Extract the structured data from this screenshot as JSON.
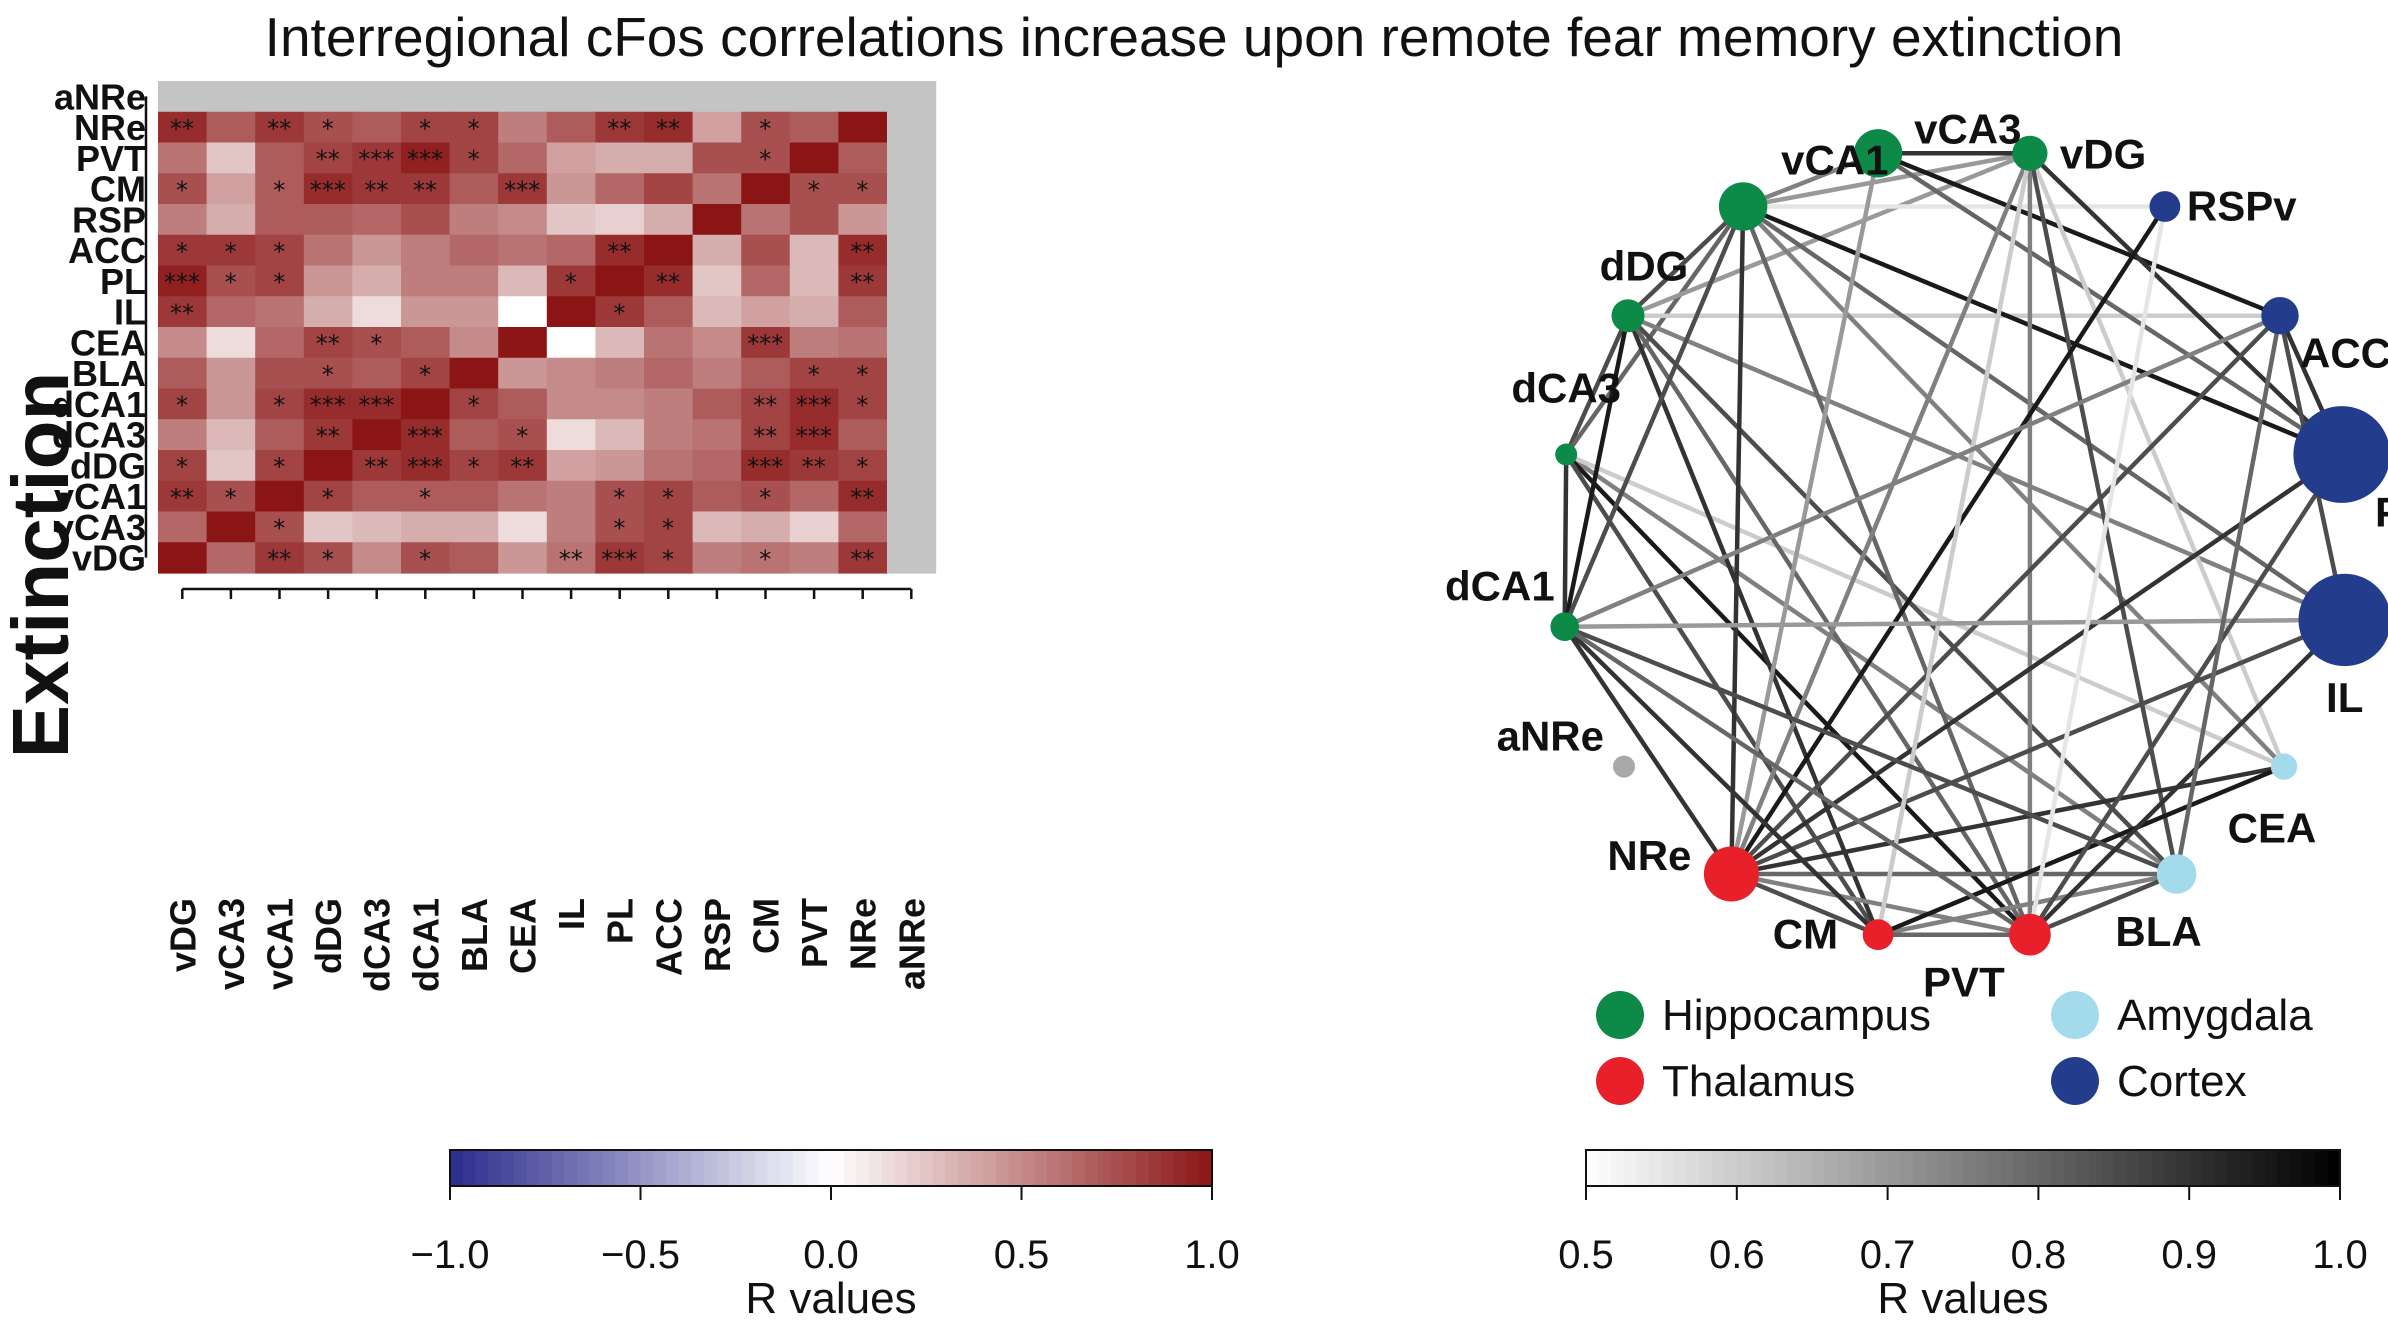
{
  "title": "Interregional cFos correlations increase upon remote fear memory extinction",
  "chart_data": [
    {
      "type": "heatmap",
      "ylabel": "Extinction",
      "rows": [
        "aNRe",
        "NRe",
        "PVT",
        "CM",
        "RSP",
        "ACC",
        "PL",
        "IL",
        "CEA",
        "BLA",
        "dCA1",
        "dCA3",
        "dDG",
        "vCA1",
        "vCA3",
        "vDG"
      ],
      "columns": [
        "vDG",
        "vCA3",
        "vCA1",
        "dDG",
        "dCA3",
        "dCA1",
        "BLA",
        "CEA",
        "IL",
        "PL",
        "ACC",
        "RSP",
        "CM",
        "PVT",
        "NRe",
        "aNRe"
      ],
      "values": [
        [
          null,
          null,
          null,
          null,
          null,
          null,
          null,
          null,
          null,
          null,
          null,
          null,
          null,
          null,
          null,
          null
        ],
        [
          0.9,
          0.7,
          0.85,
          0.75,
          0.7,
          0.8,
          0.8,
          0.55,
          0.7,
          0.85,
          0.9,
          0.4,
          0.75,
          0.7,
          1.0,
          null
        ],
        [
          0.6,
          0.25,
          0.7,
          0.8,
          0.85,
          0.95,
          0.8,
          0.65,
          0.4,
          0.35,
          0.35,
          0.75,
          0.75,
          1.0,
          0.7,
          null
        ],
        [
          0.75,
          0.4,
          0.7,
          0.9,
          0.85,
          0.85,
          0.7,
          0.85,
          0.45,
          0.65,
          0.8,
          0.6,
          1.0,
          0.75,
          0.75,
          null
        ],
        [
          0.55,
          0.35,
          0.7,
          0.7,
          0.65,
          0.75,
          0.55,
          0.5,
          0.25,
          0.2,
          0.35,
          1.0,
          0.6,
          0.75,
          0.45,
          null
        ],
        [
          0.85,
          0.85,
          0.8,
          0.6,
          0.45,
          0.55,
          0.65,
          0.6,
          0.65,
          0.9,
          1.0,
          0.35,
          0.75,
          0.3,
          0.9,
          null
        ],
        [
          0.95,
          0.75,
          0.8,
          0.45,
          0.35,
          0.55,
          0.55,
          0.3,
          0.85,
          1.0,
          0.9,
          0.25,
          0.65,
          0.3,
          0.85,
          null
        ],
        [
          0.85,
          0.65,
          0.6,
          0.35,
          0.15,
          0.45,
          0.45,
          0.0,
          1.0,
          0.85,
          0.7,
          0.3,
          0.4,
          0.35,
          0.7,
          null
        ],
        [
          0.5,
          0.15,
          0.65,
          0.8,
          0.75,
          0.7,
          0.5,
          1.0,
          0.0,
          0.3,
          0.6,
          0.5,
          0.85,
          0.55,
          0.6,
          null
        ],
        [
          0.7,
          0.45,
          0.75,
          0.75,
          0.7,
          0.8,
          1.0,
          0.45,
          0.5,
          0.55,
          0.65,
          0.55,
          0.7,
          0.8,
          0.8,
          null
        ],
        [
          0.8,
          0.45,
          0.8,
          0.9,
          0.9,
          1.0,
          0.8,
          0.7,
          0.5,
          0.5,
          0.55,
          0.7,
          0.8,
          0.9,
          0.8,
          null
        ],
        [
          0.55,
          0.3,
          0.7,
          0.85,
          1.0,
          0.9,
          0.7,
          0.75,
          0.15,
          0.3,
          0.55,
          0.6,
          0.8,
          0.9,
          0.7,
          null
        ],
        [
          0.8,
          0.25,
          0.8,
          1.0,
          0.85,
          0.9,
          0.8,
          0.85,
          0.4,
          0.45,
          0.6,
          0.65,
          0.9,
          0.85,
          0.8,
          null
        ],
        [
          0.85,
          0.75,
          1.0,
          0.8,
          0.7,
          0.7,
          0.7,
          0.6,
          0.55,
          0.75,
          0.8,
          0.7,
          0.75,
          0.65,
          0.9,
          null
        ],
        [
          0.65,
          1.0,
          0.75,
          0.25,
          0.3,
          0.35,
          0.35,
          0.15,
          0.55,
          0.75,
          0.8,
          0.3,
          0.35,
          0.2,
          0.65,
          null
        ],
        [
          1.0,
          0.65,
          0.85,
          0.75,
          0.5,
          0.75,
          0.7,
          0.45,
          0.6,
          0.85,
          0.8,
          0.55,
          0.6,
          0.55,
          0.85,
          null
        ]
      ],
      "significance": [
        [
          "",
          "",
          "",
          "",
          "",
          "",
          "",
          "",
          "",
          "",
          "",
          "",
          "",
          "",
          "",
          ""
        ],
        [
          "**",
          "",
          "**",
          "*",
          "",
          "*",
          "*",
          "",
          "",
          "**",
          "**",
          "",
          "*",
          "",
          "",
          ""
        ],
        [
          "",
          "",
          "",
          "**",
          "***",
          "***",
          "*",
          "",
          "",
          "",
          "",
          "",
          "*",
          "",
          "",
          ""
        ],
        [
          "*",
          "",
          "*",
          "***",
          "**",
          "**",
          "",
          "***",
          "",
          "",
          "",
          "",
          "",
          "*",
          "*",
          ""
        ],
        [
          "",
          "",
          "",
          "",
          "",
          "",
          "",
          "",
          "",
          "",
          "",
          "",
          "",
          "",
          "",
          ""
        ],
        [
          "*",
          "*",
          "*",
          "",
          "",
          "",
          "",
          "",
          "",
          "**",
          "",
          "",
          "",
          "",
          "**",
          ""
        ],
        [
          "***",
          "*",
          "*",
          "",
          "",
          "",
          "",
          "",
          "*",
          "",
          "**",
          "",
          "",
          "",
          "**",
          ""
        ],
        [
          "**",
          "",
          "",
          "",
          "",
          "",
          "",
          "",
          "",
          "*",
          "",
          "",
          "",
          "",
          "",
          ""
        ],
        [
          "",
          "",
          "",
          "**",
          "*",
          "",
          "",
          "",
          "",
          "",
          "",
          "",
          "***",
          "",
          "",
          ""
        ],
        [
          "",
          "",
          "",
          "*",
          "",
          "*",
          "",
          "",
          "",
          "",
          "",
          "",
          "",
          "*",
          "*",
          ""
        ],
        [
          "*",
          "",
          "*",
          "***",
          "***",
          "",
          "*",
          "",
          "",
          "",
          "",
          "",
          "**",
          "***",
          "*",
          ""
        ],
        [
          "",
          "",
          "",
          "**",
          "",
          "***",
          "",
          "*",
          "",
          "",
          "",
          "",
          "**",
          "***",
          "",
          ""
        ],
        [
          "*",
          "",
          "*",
          "",
          "**",
          "***",
          "*",
          "**",
          "",
          "",
          "",
          "",
          "***",
          "**",
          "*",
          ""
        ],
        [
          "**",
          "*",
          "",
          "*",
          "",
          "*",
          "",
          "",
          "",
          "*",
          "*",
          "",
          "*",
          "",
          "**",
          ""
        ],
        [
          "",
          "",
          "*",
          "",
          "",
          "",
          "",
          "",
          "",
          "*",
          "*",
          "",
          "",
          "",
          "",
          ""
        ],
        [
          "",
          "",
          "**",
          "*",
          "",
          "*",
          "",
          "",
          "**",
          "***",
          "*",
          "",
          "*",
          "",
          "**",
          ""
        ]
      ],
      "colorbar": {
        "label": "R values",
        "range": [
          -1.0,
          1.0
        ],
        "ticks": [
          "−1.0",
          "−0.5",
          "0.0",
          "0.5",
          "1.0"
        ],
        "colors": [
          "#2b2b8c",
          "#ffffff",
          "#8b1515"
        ]
      }
    },
    {
      "type": "network",
      "nodes": [
        {
          "id": "dCA3",
          "group": "Hippocampus",
          "size": 1
        },
        {
          "id": "dDG",
          "group": "Hippocampus",
          "size": 1.5
        },
        {
          "id": "vCA1",
          "group": "Hippocampus",
          "size": 2.2
        },
        {
          "id": "vCA3",
          "group": "Hippocampus",
          "size": 2.2
        },
        {
          "id": "vDG",
          "group": "Hippocampus",
          "size": 1.6
        },
        {
          "id": "RSPv",
          "group": "Cortex",
          "size": 1.4
        },
        {
          "id": "ACC",
          "group": "Cortex",
          "size": 1.7
        },
        {
          "id": "PL",
          "group": "Cortex",
          "size": 4.4
        },
        {
          "id": "IL",
          "group": "Cortex",
          "size": 4.2
        },
        {
          "id": "CEA",
          "group": "Amygdala",
          "size": 1.2
        },
        {
          "id": "BLA",
          "group": "Amygdala",
          "size": 1.8
        },
        {
          "id": "PVT",
          "group": "Thalamus",
          "size": 1.9
        },
        {
          "id": "CM",
          "group": "Thalamus",
          "size": 1.4
        },
        {
          "id": "NRe",
          "group": "Thalamus",
          "size": 2.5
        },
        {
          "id": "aNRe",
          "group": "None",
          "size": 1
        },
        {
          "id": "dCA1",
          "group": "Hippocampus",
          "size": 1.3
        }
      ],
      "edges": [
        [
          "dCA3",
          "dDG",
          0.85
        ],
        [
          "dCA3",
          "dCA1",
          0.9
        ],
        [
          "dCA3",
          "BLA",
          0.75
        ],
        [
          "dCA3",
          "CEA",
          0.6
        ],
        [
          "dCA3",
          "PVT",
          0.95
        ],
        [
          "dCA3",
          "CM",
          0.85
        ],
        [
          "dCA3",
          "vCA1",
          0.8
        ],
        [
          "dDG",
          "dCA1",
          0.95
        ],
        [
          "dDG",
          "vCA1",
          0.85
        ],
        [
          "dDG",
          "BLA",
          0.85
        ],
        [
          "dDG",
          "CM",
          0.9
        ],
        [
          "dDG",
          "PVT",
          0.8
        ],
        [
          "dDG",
          "vDG",
          0.7
        ],
        [
          "dDG",
          "IL",
          0.75
        ],
        [
          "dDG",
          "ACC",
          0.6
        ],
        [
          "vCA1",
          "vCA3",
          0.75
        ],
        [
          "vCA1",
          "NRe",
          0.9
        ],
        [
          "vCA1",
          "CEA",
          0.75
        ],
        [
          "vCA1",
          "PVT",
          0.8
        ],
        [
          "vCA1",
          "IL",
          0.8
        ],
        [
          "vCA1",
          "PL",
          0.95
        ],
        [
          "vCA1",
          "dCA1",
          0.85
        ],
        [
          "vCA1",
          "vDG",
          0.7
        ],
        [
          "vCA1",
          "RSPv",
          0.55
        ],
        [
          "vCA3",
          "vDG",
          0.9
        ],
        [
          "vCA3",
          "NRe",
          0.7
        ],
        [
          "vCA3",
          "ACC",
          0.95
        ],
        [
          "vCA3",
          "PL",
          0.8
        ],
        [
          "vDG",
          "NRe",
          0.75
        ],
        [
          "vDG",
          "CM",
          0.6
        ],
        [
          "vDG",
          "PL",
          0.9
        ],
        [
          "vDG",
          "CEA",
          0.6
        ],
        [
          "vDG",
          "BLA",
          0.85
        ],
        [
          "vDG",
          "PVT",
          0.75
        ],
        [
          "NRe",
          "RSPv",
          0.95
        ],
        [
          "NRe",
          "PL",
          0.9
        ],
        [
          "NRe",
          "IL",
          0.85
        ],
        [
          "NRe",
          "ACC",
          0.85
        ],
        [
          "NRe",
          "BLA",
          0.8
        ],
        [
          "NRe",
          "CEA",
          0.9
        ],
        [
          "NRe",
          "PVT",
          0.75
        ],
        [
          "NRe",
          "CM",
          0.85
        ],
        [
          "NRe",
          "dCA1",
          0.9
        ],
        [
          "CM",
          "vDG",
          0.6
        ],
        [
          "CM",
          "dCA1",
          0.9
        ],
        [
          "CM",
          "BLA",
          0.75
        ],
        [
          "CM",
          "PVT",
          0.8
        ],
        [
          "CM",
          "CEA",
          0.95
        ],
        [
          "dCA1",
          "BLA",
          0.85
        ],
        [
          "dCA1",
          "ACC",
          0.75
        ],
        [
          "dCA1",
          "IL",
          0.7
        ],
        [
          "dCA1",
          "PVT",
          0.8
        ],
        [
          "PVT",
          "BLA",
          0.85
        ],
        [
          "PVT",
          "PL",
          0.85
        ],
        [
          "PVT",
          "IL",
          0.9
        ],
        [
          "PVT",
          "RSPv",
          0.55
        ],
        [
          "ACC",
          "PL",
          0.9
        ],
        [
          "ACC",
          "IL",
          0.85
        ],
        [
          "ACC",
          "BLA",
          0.8
        ]
      ],
      "legend": [
        {
          "name": "Hippocampus",
          "color": "#0d8a47"
        },
        {
          "name": "Amygdala",
          "color": "#a4dbec"
        },
        {
          "name": "Thalamus",
          "color": "#e8202a"
        },
        {
          "name": "Cortex",
          "color": "#233c8c"
        }
      ],
      "inactive_color": "#a9a9a9",
      "colorbar": {
        "label": "R values",
        "range": [
          0.5,
          1.0
        ],
        "ticks": [
          "0.5",
          "0.6",
          "0.7",
          "0.8",
          "0.9",
          "1.0"
        ],
        "colors": [
          "#ffffff",
          "#000000"
        ]
      }
    }
  ]
}
